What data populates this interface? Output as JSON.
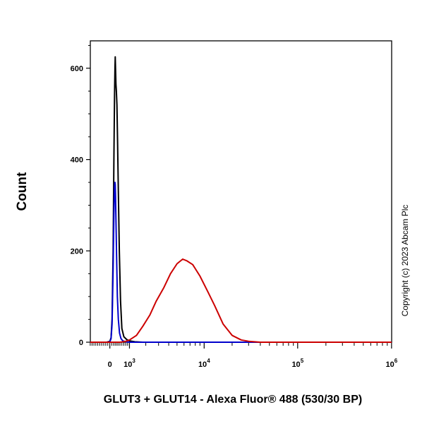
{
  "chart_data": {
    "type": "line",
    "xlabel": "GLUT3 + GLUT14 - Alexa Fluor® 488 (530/30 BP)",
    "ylabel": "Count",
    "side_text": "Copyright (c) 2023 Abcam Plc",
    "x_scale": "biexponential",
    "xlim": [
      -1000,
      1000000
    ],
    "ylim": [
      0,
      660
    ],
    "x_ticks": [
      {
        "value": 0,
        "label": "0",
        "exp": ""
      },
      {
        "value": 1000,
        "label": "10",
        "exp": "3"
      },
      {
        "value": 10000,
        "label": "10",
        "exp": "4"
      },
      {
        "value": 100000,
        "label": "10",
        "exp": "5"
      },
      {
        "value": 1000000,
        "label": "10",
        "exp": "6"
      }
    ],
    "y_ticks": [
      0,
      200,
      400,
      600
    ],
    "series": [
      {
        "color": "#000000",
        "x": [
          -1000,
          -150,
          0,
          60,
          110,
          160,
          200,
          230,
          250,
          265,
          280,
          300,
          320,
          350,
          380,
          420,
          470,
          530,
          600,
          700,
          850,
          1000,
          1300,
          1800,
          2500,
          4000,
          10000,
          100000,
          1000000
        ],
        "y": [
          0,
          0,
          2,
          10,
          50,
          200,
          400,
          540,
          600,
          625,
          600,
          565,
          550,
          520,
          440,
          330,
          200,
          90,
          30,
          12,
          6,
          3,
          1,
          0,
          0,
          0,
          0,
          0,
          0
        ]
      },
      {
        "color": "#0000cc",
        "x": [
          -1000,
          -150,
          0,
          60,
          110,
          160,
          200,
          230,
          250,
          265,
          280,
          300,
          330,
          370,
          420,
          480,
          550,
          650,
          800,
          1000,
          10000,
          1000000
        ],
        "y": [
          0,
          0,
          1,
          8,
          40,
          160,
          280,
          340,
          350,
          345,
          320,
          270,
          190,
          100,
          50,
          20,
          8,
          3,
          1,
          0,
          0,
          0
        ]
      },
      {
        "color": "#cc0000",
        "x": [
          -1000,
          500,
          800,
          1000,
          1400,
          1800,
          2300,
          2800,
          3500,
          4200,
          5000,
          5800,
          6500,
          7500,
          9000,
          11000,
          13000,
          16000,
          20000,
          25000,
          30000,
          40000,
          100000,
          1000000
        ],
        "y": [
          0,
          0,
          2,
          5,
          15,
          35,
          60,
          90,
          120,
          150,
          172,
          182,
          178,
          170,
          145,
          110,
          80,
          40,
          15,
          5,
          2,
          0,
          0,
          0
        ]
      }
    ]
  }
}
